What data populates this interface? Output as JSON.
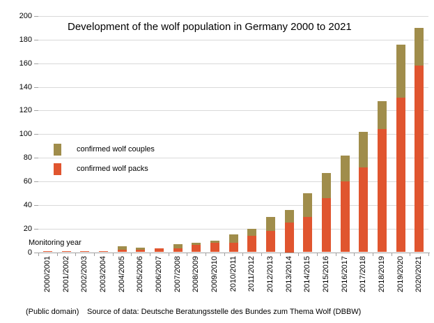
{
  "title": "Development of the wolf population in Germany 2000 to 2021",
  "legend": {
    "couples_label": "confirmed wolf couples",
    "packs_label": "confirmed wolf packs"
  },
  "monitoring_year_label": "Monitoring year",
  "footer": {
    "license": "(Public domain)",
    "source": "Source of data: Deutsche Beratungsstelle des Bundes zum Thema Wolf (DBBW)"
  },
  "colors": {
    "packs": "#e0552f",
    "couples": "#a08d4b",
    "gridline": "#d9d9d9",
    "axis": "#a0a0a0",
    "text": "#000000"
  },
  "chart_data": {
    "type": "bar",
    "stacked": true,
    "title": "Development of the wolf population in Germany 2000 to 2021",
    "xlabel": "Monitoring year",
    "ylabel": "",
    "ylim": [
      0,
      200
    ],
    "yticks": [
      0,
      20,
      40,
      60,
      80,
      100,
      120,
      140,
      160,
      180,
      200
    ],
    "grid": true,
    "legend_position": "upper-left-inside",
    "categories": [
      "2000/2001",
      "2001/2002",
      "2002/2003",
      "2003/2004",
      "2004/2005",
      "2005/2006",
      "2006/2007",
      "2007/2008",
      "2008/2009",
      "2009/2010",
      "2010/2011",
      "2011/2012",
      "2012/2013",
      "2013/2014",
      "2014/2015",
      "2015/2016",
      "2016/2017",
      "2017/2018",
      "2018/2019",
      "2019/2020",
      "2020/2021"
    ],
    "series": [
      {
        "name": "confirmed wolf packs",
        "color": "#e0552f",
        "values": [
          1,
          1,
          1,
          1,
          2,
          2,
          3,
          3,
          6,
          8,
          8,
          14,
          18,
          25,
          30,
          46,
          60,
          72,
          104,
          131,
          158
        ]
      },
      {
        "name": "confirmed wolf couples",
        "color": "#a08d4b",
        "values": [
          0,
          0,
          0,
          0,
          3,
          2,
          0,
          4,
          2,
          2,
          7,
          6,
          12,
          11,
          20,
          21,
          22,
          30,
          24,
          45,
          32
        ]
      }
    ]
  }
}
